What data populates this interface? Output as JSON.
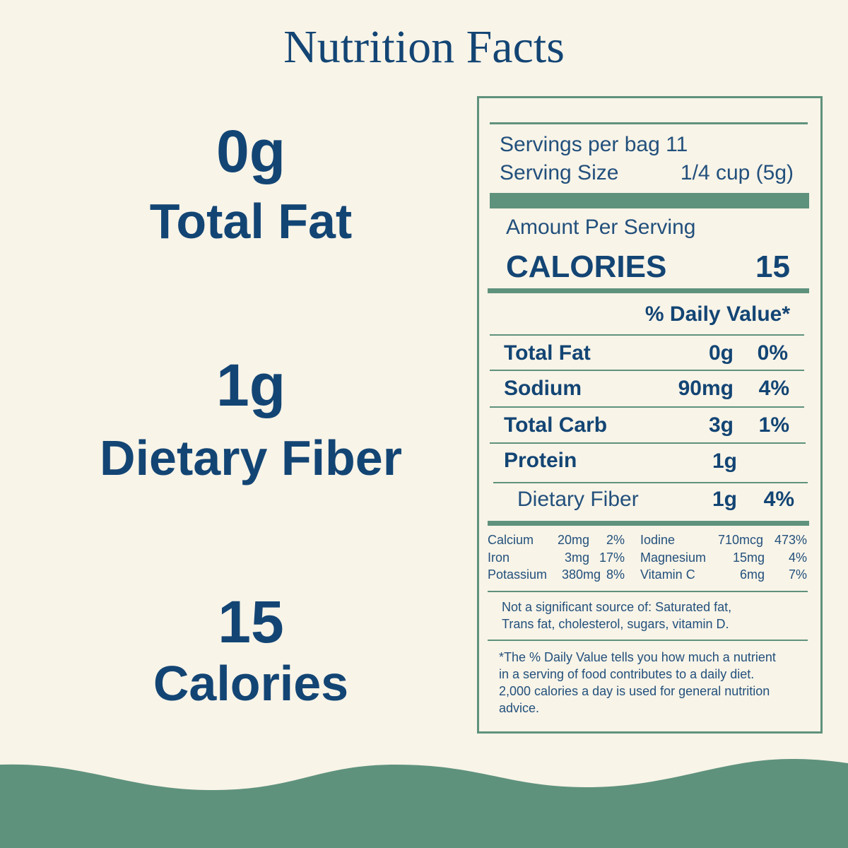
{
  "header": {
    "title": "Nutrition Facts"
  },
  "highlights": [
    {
      "value": "0g",
      "label": "Total Fat"
    },
    {
      "value": "1g",
      "label": "Dietary Fiber"
    },
    {
      "value": "15",
      "label": "Calories"
    }
  ],
  "label": {
    "servings_per": "Servings per bag 11",
    "serving_size_label": "Serving Size",
    "serving_size_value": "1/4 cup (5g)",
    "amount_per_serving": "Amount Per Serving",
    "calories_label": "CALORIES",
    "calories_value": "15",
    "daily_value_header": "% Daily Value*",
    "nutrients": [
      {
        "name": "Total Fat",
        "amount": "0g",
        "dv": "0%"
      },
      {
        "name": "Sodium",
        "amount": "90mg",
        "dv": "4%"
      },
      {
        "name": "Total Carb",
        "amount": "3g",
        "dv": "1%"
      },
      {
        "name": "Protein",
        "amount": "1g"
      },
      {
        "name": "Dietary Fiber",
        "amount": "1g",
        "dv": "4%"
      }
    ],
    "minerals": [
      {
        "name": "Calcium",
        "amount": "20mg",
        "dv": "2%"
      },
      {
        "name": "Iron",
        "amount": "3mg",
        "dv": "17%"
      },
      {
        "name": "Potassium",
        "amount": "380mg",
        "dv": "8%"
      },
      {
        "name": "Iodine",
        "amount": "710mcg",
        "dv": "473%"
      },
      {
        "name": "Magnesium",
        "amount": "15mg",
        "dv": "4%"
      },
      {
        "name": "Vitamin C",
        "amount": "6mg",
        "dv": "7%"
      }
    ],
    "not_significant": "Not a significant source of: Saturated fat, Trans fat, cholesterol, sugars, vitamin D.",
    "footnote": "*The % Daily Value tells you how much a nutrient in a serving of food contributes to a daily diet. 2,000 calories a day is used for general nutrition advice."
  }
}
